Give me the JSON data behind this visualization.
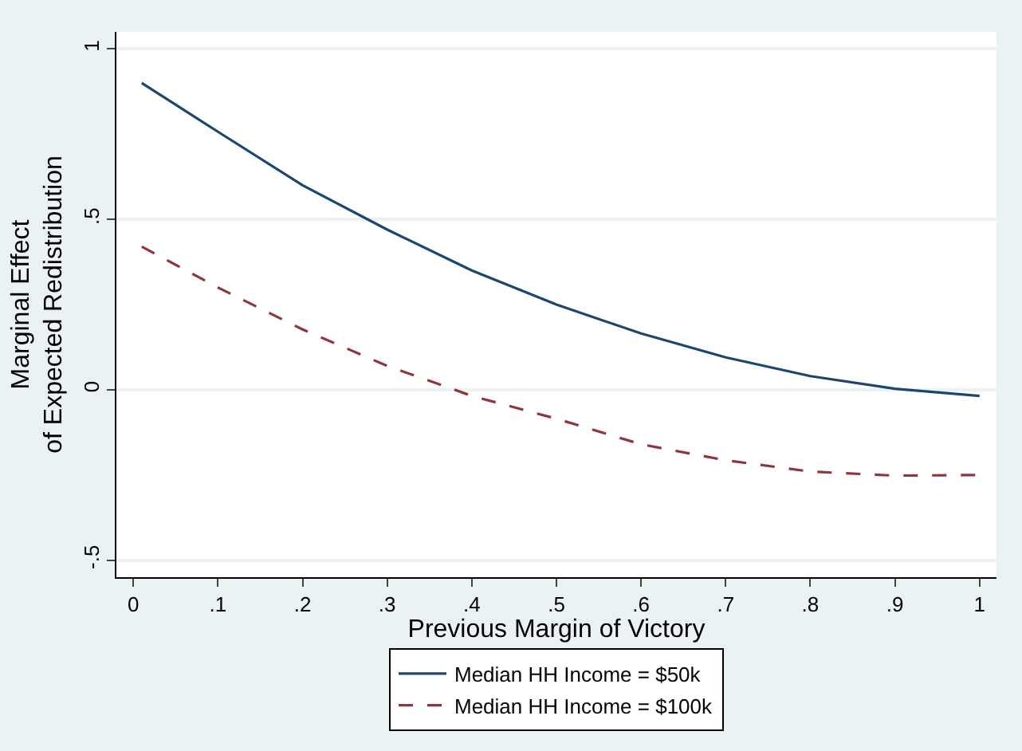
{
  "chart_data": {
    "type": "line",
    "xlabel": "Previous Margin of Victory",
    "ylabel": "Marginal Effect\nof Expected Redistribution",
    "xlim": [
      -0.02,
      1.02
    ],
    "ylim": [
      -0.55,
      1.05
    ],
    "xticks": [
      0,
      {
        "value": 0.1,
        "label": ".1"
      },
      {
        "value": 0.2,
        "label": ".2"
      },
      {
        "value": 0.3,
        "label": ".3"
      },
      {
        "value": 0.4,
        "label": ".4"
      },
      {
        "value": 0.5,
        "label": ".5"
      },
      {
        "value": 0.6,
        "label": ".6"
      },
      {
        "value": 0.7,
        "label": ".7"
      },
      {
        "value": 0.8,
        "label": ".8"
      },
      {
        "value": 0.9,
        "label": ".9"
      },
      1
    ],
    "yticks": [
      {
        "value": -0.5,
        "label": "-.5"
      },
      0,
      {
        "value": 0.5,
        "label": ".5"
      },
      1
    ],
    "grid": "y",
    "legend": "bottom",
    "series": [
      {
        "name": "Median HH Income = $50k",
        "color": "#1a476f",
        "line_style": "solid",
        "x": [
          0.01,
          0.1,
          0.2,
          0.3,
          0.4,
          0.5,
          0.6,
          0.7,
          0.8,
          0.9,
          1
        ],
        "values": [
          0.9,
          0.757,
          0.6,
          0.47,
          0.35,
          0.25,
          0.165,
          0.095,
          0.04,
          0.003,
          -0.018
        ]
      },
      {
        "name": "Median HH Income = $100k",
        "color": "#90353b",
        "line_style": "dashed",
        "x": [
          0.01,
          0.1,
          0.2,
          0.3,
          0.4,
          0.5,
          0.6,
          0.7,
          0.8,
          0.9,
          1
        ],
        "values": [
          0.42,
          0.3,
          0.177,
          0.07,
          -0.018,
          -0.085,
          -0.16,
          -0.207,
          -0.24,
          -0.252,
          -0.25
        ]
      }
    ]
  }
}
